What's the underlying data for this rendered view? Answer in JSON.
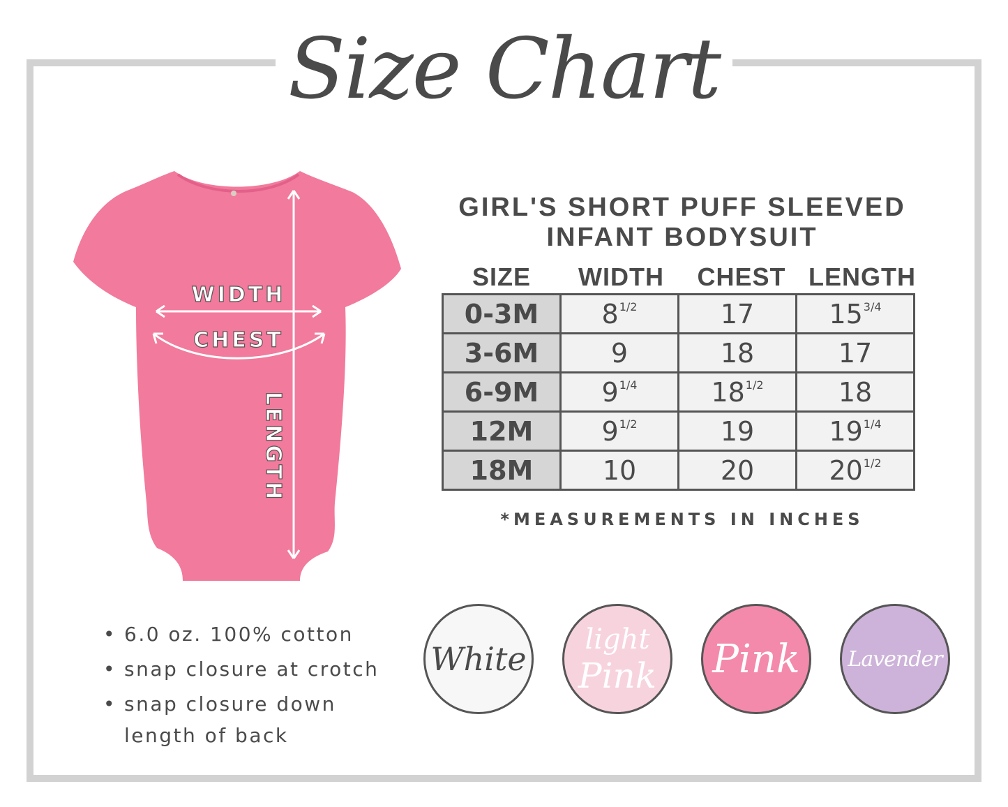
{
  "title": "Size Chart",
  "product": {
    "line1": "GIRL'S SHORT PUFF SLEEVED",
    "line2": "INFANT BODYSUIT",
    "color": "#f27a9c"
  },
  "diagram_labels": {
    "width": "WIDTH",
    "chest": "CHEST",
    "length": "LENGTH"
  },
  "table": {
    "headers": [
      "SIZE",
      "WIDTH",
      "CHEST",
      "LENGTH"
    ],
    "rows": [
      {
        "size": "0-3M",
        "width": "8",
        "width_frac": "1/2",
        "chest": "17",
        "chest_frac": "",
        "length": "15",
        "length_frac": "3/4"
      },
      {
        "size": "3-6M",
        "width": "9",
        "width_frac": "",
        "chest": "18",
        "chest_frac": "",
        "length": "17",
        "length_frac": ""
      },
      {
        "size": "6-9M",
        "width": "9",
        "width_frac": "1/4",
        "chest": "18",
        "chest_frac": "1/2",
        "length": "18",
        "length_frac": ""
      },
      {
        "size": "12M",
        "width": "9",
        "width_frac": "1/2",
        "chest": "19",
        "chest_frac": "",
        "length": "19",
        "length_frac": "1/4"
      },
      {
        "size": "18M",
        "width": "10",
        "width_frac": "",
        "chest": "20",
        "chest_frac": "",
        "length": "20",
        "length_frac": "1/2"
      }
    ],
    "note": "*MEASUREMENTS IN INCHES"
  },
  "features": [
    "6.0 oz. 100% cotton",
    "snap closure at crotch",
    "snap closure down",
    "length of back"
  ],
  "colors": [
    {
      "name": "White",
      "hex": "#f7f7f7",
      "text": "#4a4a4a"
    },
    {
      "name_line1": "light",
      "name": "Pink",
      "hex": "#f7d3de",
      "text": "#ffffff"
    },
    {
      "name": "Pink",
      "hex": "#f48aab",
      "text": "#ffffff"
    },
    {
      "name": "Lavender",
      "hex": "#cdb3d9",
      "text": "#ffffff"
    }
  ]
}
